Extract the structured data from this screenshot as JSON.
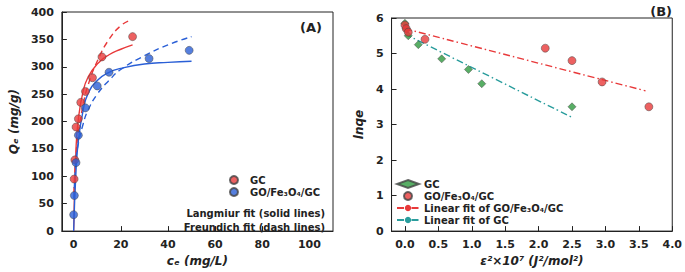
{
  "chart_data": [
    {
      "type": "scatter",
      "title": "(A)",
      "x_label": "cₑ (mg/L)",
      "y_label": "Qₑ (mg/g)",
      "xlim": [
        -5,
        110
      ],
      "xticks": [
        0,
        20,
        40,
        60,
        80,
        100
      ],
      "ylim": [
        0,
        400
      ],
      "yticks": [
        0,
        50,
        100,
        150,
        200,
        250,
        300,
        350,
        400
      ],
      "grid": false,
      "legend": "lower right",
      "annotations": [
        "Langmiur fit (solid lines)",
        "Freundich fit (dash lines)"
      ],
      "series": [
        {
          "name": "GC",
          "type": "scatter",
          "color": "#e8393a",
          "marker": "circle",
          "x": [
            0.2,
            0.5,
            1,
            2,
            3,
            5,
            8,
            12,
            25
          ],
          "values": [
            95,
            130,
            190,
            205,
            235,
            255,
            280,
            318,
            355
          ]
        },
        {
          "name": "GO/Fe₃O₄/GC",
          "type": "scatter",
          "color": "#2a5fd6",
          "marker": "circle",
          "x": [
            0,
            0.3,
            1,
            2,
            5,
            10,
            15,
            32,
            49
          ],
          "values": [
            30,
            65,
            125,
            175,
            225,
            265,
            290,
            315,
            330
          ]
        },
        {
          "type": "line",
          "color": "#e8393a",
          "line_style": "solid",
          "x": [
            0,
            1,
            2,
            4,
            6,
            10,
            15,
            20,
            25
          ],
          "values": [
            0,
            150,
            205,
            255,
            280,
            305,
            322,
            332,
            340
          ]
        },
        {
          "type": "line",
          "color": "#e8393a",
          "line_style": "dashed",
          "x": [
            0.1,
            0.5,
            1,
            2,
            4,
            6,
            10,
            15,
            20,
            24
          ],
          "values": [
            70,
            110,
            140,
            180,
            230,
            265,
            310,
            350,
            375,
            385
          ]
        },
        {
          "type": "line",
          "color": "#2a5fd6",
          "line_style": "solid",
          "x": [
            0,
            1,
            2,
            4,
            6,
            10,
            15,
            20,
            30,
            40,
            50
          ],
          "values": [
            0,
            110,
            165,
            220,
            250,
            275,
            290,
            297,
            305,
            308,
            310
          ]
        },
        {
          "type": "line",
          "color": "#2a5fd6",
          "line_style": "dashed",
          "x": [
            0.1,
            1,
            2,
            4,
            6,
            10,
            15,
            20,
            30,
            40,
            50
          ],
          "values": [
            60,
            130,
            160,
            195,
            220,
            250,
            275,
            295,
            320,
            340,
            355
          ]
        }
      ]
    },
    {
      "type": "scatter",
      "title": "(B)",
      "x_label": "ε²×10⁷ (J²/mol²)",
      "y_label": "lnqe",
      "xlim": [
        -0.2,
        4.0
      ],
      "xticks": [
        {
          "value": 0,
          "label": "0.0"
        },
        {
          "value": 0.5,
          "label": "0.5"
        },
        {
          "value": 1,
          "label": "1.0"
        },
        {
          "value": 1.5,
          "label": "1.5"
        },
        {
          "value": 2,
          "label": "2.0"
        },
        {
          "value": 2.5,
          "label": "2.5"
        },
        {
          "value": 3,
          "label": "3.0"
        },
        {
          "value": 3.5,
          "label": "3.5"
        },
        {
          "value": 4,
          "label": "4.0"
        }
      ],
      "ylim": [
        0,
        6
      ],
      "yticks": [
        0,
        1,
        2,
        3,
        4,
        5,
        6
      ],
      "grid": false,
      "legend": "lower left",
      "series": [
        {
          "name": "GC",
          "type": "scatter",
          "color": "#2e9a3e",
          "marker": "diamond",
          "x": [
            0,
            0.02,
            0.05,
            0.2,
            0.55,
            0.95,
            1.15,
            2.5
          ],
          "values": [
            5.85,
            5.7,
            5.5,
            5.25,
            4.85,
            4.55,
            4.15,
            3.5
          ]
        },
        {
          "name": "GO/Fe₃O₄/GC",
          "type": "scatter",
          "color": "#e8393a",
          "marker": "circle",
          "x": [
            0,
            0.02,
            0.05,
            0.3,
            2.1,
            2.5,
            2.95,
            3.65
          ],
          "values": [
            5.8,
            5.7,
            5.6,
            5.4,
            5.15,
            4.8,
            4.2,
            3.5
          ]
        },
        {
          "name": "Linear fit of GO/Fe₃O₄/GC",
          "type": "line",
          "color": "#e8393a",
          "line_style": "dashdot",
          "x": [
            0,
            3.6
          ],
          "values": [
            5.7,
            3.95
          ]
        },
        {
          "name": "Linear fit of GC",
          "type": "line",
          "color": "#2a9d9d",
          "line_style": "dashdot",
          "x": [
            0,
            2.5
          ],
          "values": [
            5.55,
            3.2
          ]
        }
      ]
    }
  ]
}
